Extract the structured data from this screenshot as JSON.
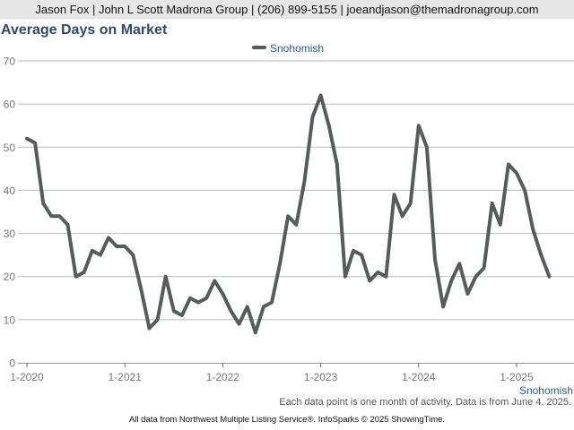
{
  "header": {
    "agent_line": "Jason Fox | John L Scott Madrona Group | (206) 899-5155 | joeandjason@themadronagroup.com"
  },
  "footer": {
    "note": "Each data point is one month of activity. Data is from June 4, 2025.",
    "source": "All data from Northwest Multiple Listing Service®. InfoSparks © 2025 ShowingTime."
  },
  "colors": {
    "series": "#555d5c",
    "title": "#2e4a6b",
    "legend_text": "#2e5a8a",
    "grid": "#bbbbbb",
    "axis_text": "#777777"
  },
  "chart_data": {
    "type": "line",
    "title": "Average Days on Market",
    "legend_position": "top-center",
    "grid": true,
    "ylim": [
      0,
      70
    ],
    "yticks": [
      0,
      10,
      20,
      30,
      40,
      50,
      60,
      70
    ],
    "xtick_labels": [
      "1-2020",
      "1-2021",
      "1-2022",
      "1-2023",
      "1-2024",
      "1-2025"
    ],
    "x_start": "2020-01",
    "x_end": "2025-05",
    "series_label": "Snohomish",
    "series": [
      {
        "name": "Snohomish",
        "values": [
          52,
          51,
          37,
          34,
          34,
          32,
          20,
          21,
          26,
          25,
          29,
          27,
          27,
          25,
          17,
          8,
          10,
          20,
          12,
          11,
          15,
          14,
          15,
          19,
          16,
          12,
          9,
          13,
          7,
          13,
          14,
          23,
          34,
          32,
          42,
          57,
          62,
          55,
          46,
          20,
          26,
          25,
          19,
          21,
          20,
          39,
          34,
          37,
          55,
          50,
          24,
          13,
          19,
          23,
          16,
          20,
          22,
          37,
          32,
          46,
          44,
          40,
          31,
          25,
          20
        ]
      }
    ]
  }
}
